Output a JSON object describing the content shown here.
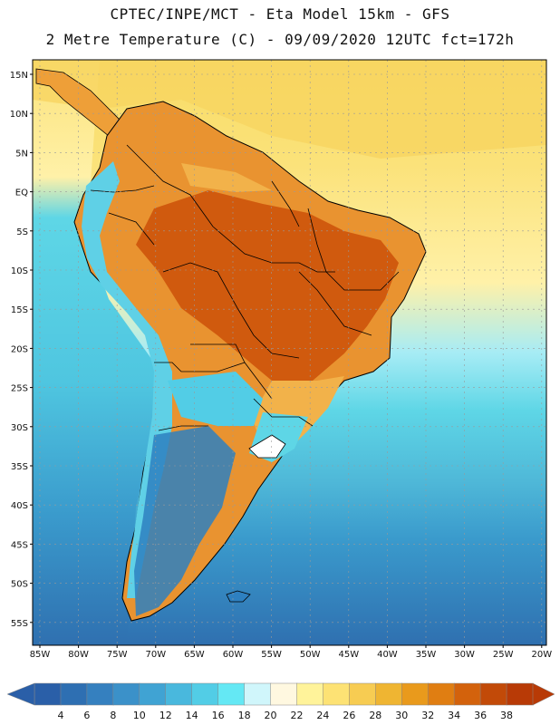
{
  "header": {
    "line1": "CPTEC/INPE/MCT -  Eta Model 15km - GFS",
    "line2": "2 Metre Temperature (C) - 09/09/2020 12UTC fct=172h"
  },
  "map": {
    "lat_labels": [
      "15N",
      "10N",
      "5N",
      "EQ",
      "5S",
      "10S",
      "15S",
      "20S",
      "25S",
      "30S",
      "35S",
      "40S",
      "45S",
      "50S",
      "55S"
    ],
    "lon_labels": [
      "85W",
      "80W",
      "75W",
      "70W",
      "65W",
      "60W",
      "55W",
      "50W",
      "45W",
      "40W",
      "35W",
      "30W",
      "25W",
      "20W"
    ],
    "colors": {
      "ocean_warm": "#f8dc66",
      "ocean_mid": "#fff1a8",
      "ocean_cool": "#5ed6e6",
      "ocean_cold": "#4fb8d8",
      "ocean_colder": "#3a9acc",
      "ocean_coldest": "#2f70b0",
      "land_hot": "#d05a0e",
      "land_warm": "#e99330",
      "land_mild": "#f2b24a",
      "andes": "#5fd0e6",
      "patagonia": "#2e80c0",
      "border": "#000000",
      "grid": "#aaaaaa"
    }
  },
  "colorbar": {
    "labels": [
      "4",
      "6",
      "8",
      "10",
      "12",
      "14",
      "16",
      "18",
      "20",
      "22",
      "24",
      "26",
      "28",
      "30",
      "32",
      "34",
      "36",
      "38"
    ],
    "colors": [
      "#2a5fa8",
      "#2e6fb2",
      "#3580bf",
      "#3b91c9",
      "#40a3d3",
      "#49b8dd",
      "#52cde6",
      "#64e8f4",
      "#d0f6fb",
      "#fff8e0",
      "#fff39a",
      "#fde274",
      "#f7cc52",
      "#efb532",
      "#e99a1c",
      "#e07e12",
      "#d3620c",
      "#c24a08",
      "#b83a06"
    ]
  }
}
